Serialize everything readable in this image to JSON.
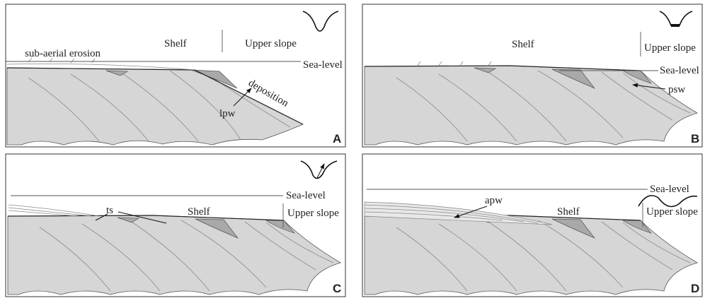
{
  "panels": [
    {
      "letter": "A",
      "shelf": "Shelf",
      "upper_slope": "Upper slope",
      "sea_level": "Sea-level",
      "annotations": [
        "sub-aerial erosion",
        "deposition",
        "lpw"
      ]
    },
    {
      "letter": "B",
      "shelf": "Shelf",
      "upper_slope": "Upper slope",
      "sea_level": "Sea-level",
      "annotations": [
        "psw"
      ]
    },
    {
      "letter": "C",
      "shelf": "Shelf",
      "upper_slope": "Upper slope",
      "sea_level": "Sea-level",
      "annotations": [
        "ts"
      ]
    },
    {
      "letter": "D",
      "shelf": "Shelf",
      "upper_slope": "Upper slope",
      "sea_level": "Sea-level",
      "annotations": [
        "apw"
      ]
    }
  ]
}
